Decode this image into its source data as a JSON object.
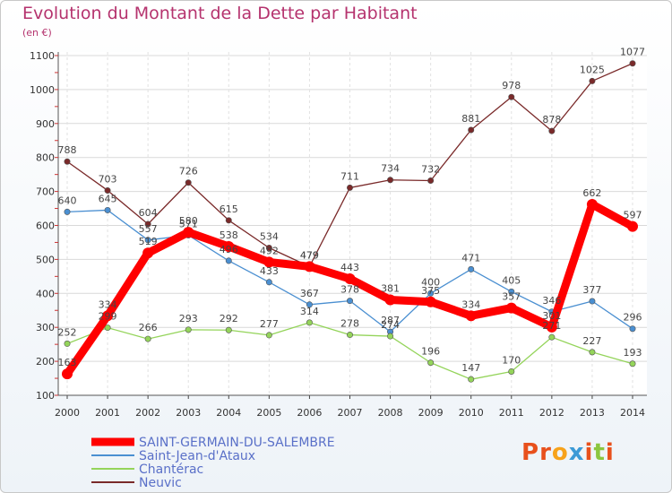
{
  "title": "Evolution du Montant de la Dette par Habitant",
  "subtitle": "(en €)",
  "brand": {
    "text": "Proxiti",
    "letter_colors": [
      "#e8501c",
      "#e8501c",
      "#f7a21b",
      "#3c9ad6",
      "#e8501c",
      "#8cc63f",
      "#e8501c"
    ]
  },
  "chart_data": {
    "type": "line",
    "title": "Evolution du Montant de la Dette par Habitant",
    "ylabel": "(en €)",
    "xlabel": "",
    "x": [
      "2000",
      "2001",
      "2002",
      "2003",
      "2004",
      "2005",
      "2006",
      "2007",
      "2008",
      "2009",
      "2010",
      "2011",
      "2012",
      "2013",
      "2014"
    ],
    "ylim": [
      100,
      1100
    ],
    "yticks": [
      "100",
      "200",
      "300",
      "400",
      "500",
      "600",
      "700",
      "800",
      "900",
      "1000",
      "1100"
    ],
    "grid": true,
    "legend": "bottom-left",
    "series": [
      {
        "name": "SAINT-GERMAIN-DU-SALEMBRE",
        "color": "#ff0000",
        "values": [
          163,
          334,
          519,
          580,
          538,
          492,
          479,
          443,
          381,
          375,
          334,
          357,
          301,
          662,
          597
        ],
        "labels": [
          "163",
          "334",
          "519",
          "580",
          "538",
          "492",
          "479",
          "443",
          "381",
          "375",
          "334",
          "357",
          "301",
          "662",
          "597"
        ]
      },
      {
        "name": "Saint-Jean-d'Ataux",
        "color": "#4a8fd1",
        "values": [
          640,
          645,
          557,
          571,
          496,
          433,
          367,
          378,
          287,
          400,
          471,
          405,
          346,
          377,
          296
        ],
        "labels": [
          "640",
          "645",
          "557",
          "571",
          "496",
          "433",
          "367",
          "378",
          "287",
          "400",
          "471",
          "405",
          "346",
          "377",
          "296"
        ]
      },
      {
        "name": "Chantérac",
        "color": "#94d45a",
        "values": [
          252,
          299,
          266,
          293,
          292,
          277,
          314,
          278,
          274,
          196,
          147,
          170,
          271,
          227,
          193
        ],
        "labels": [
          "252",
          "299",
          "266",
          "293",
          "292",
          "277",
          "314",
          "278",
          "274",
          "196",
          "147",
          "170",
          "271",
          "227",
          "193"
        ]
      },
      {
        "name": "Neuvic",
        "color": "#7a2a2a",
        "values": [
          788,
          703,
          604,
          726,
          615,
          534,
          479,
          711,
          734,
          732,
          881,
          978,
          878,
          1025,
          1077
        ],
        "labels": [
          "788",
          "703",
          "604",
          "726",
          "615",
          "534",
          "479",
          "711",
          "734",
          "732",
          "881",
          "978",
          "878",
          "1025",
          "1077"
        ]
      }
    ]
  }
}
